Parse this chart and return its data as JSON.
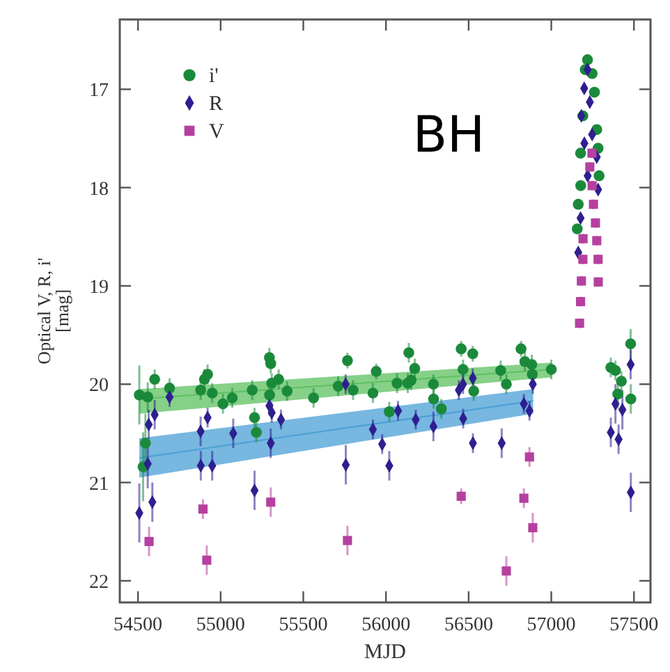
{
  "chart_data": {
    "type": "scatter",
    "xlabel": "MJD",
    "ylabel": "Optical V, R, i'\n[mag]",
    "annotations": [
      "BH"
    ],
    "xlim": [
      54390,
      57600
    ],
    "ylim": [
      22.22,
      16.29
    ],
    "xticks": [
      54500,
      55000,
      55500,
      56000,
      56500,
      57000,
      57500
    ],
    "yticks": [
      17,
      18,
      19,
      20,
      21,
      22
    ],
    "legend": "top left",
    "grid": false,
    "series": [
      {
        "type": "line",
        "color": "#5ec060",
        "x": [
          54508,
          57000
        ],
        "values": [
          20.15,
          19.85
        ],
        "lower": [
          20.05,
          19.78
        ],
        "upper": [
          20.3,
          19.93
        ]
      },
      {
        "type": "line",
        "color": "#4a9fd6",
        "x": [
          54508,
          56890
        ],
        "values": [
          20.75,
          20.17
        ],
        "lower": [
          20.55,
          20.05
        ],
        "upper": [
          20.95,
          20.3
        ]
      },
      {
        "name": "i'",
        "color": "#1a8a3a",
        "marker": "circle",
        "x": [
          54508,
          54559,
          54545,
          54531,
          54601,
          54691,
          54879,
          54902,
          54921,
          54949,
          55014,
          55070,
          55191,
          55205,
          55216,
          55295,
          55303,
          55309,
          55296,
          55351,
          55402,
          55562,
          55711,
          55767,
          55801,
          55921,
          55941,
          56020,
          56067,
          56138,
          56174,
          56132,
          56152,
          56287,
          56288,
          56335,
          56455,
          56466,
          56525,
          56531,
          56694,
          56728,
          56817,
          56840,
          56882,
          56885,
          57000,
          57219,
          57205,
          57247,
          57261,
          57191,
          57275,
          57177,
          57283,
          57178,
          57289,
          57163,
          57157,
          57360,
          57388,
          57424,
          57402,
          57480,
          57481
        ],
        "values": [
          20.11,
          20.13,
          20.6,
          20.84,
          19.95,
          20.04,
          20.06,
          19.95,
          19.9,
          20.09,
          20.2,
          20.14,
          20.06,
          20.34,
          20.49,
          19.73,
          19.79,
          19.99,
          20.11,
          19.95,
          20.07,
          20.14,
          20.02,
          19.76,
          20.06,
          20.09,
          19.87,
          20.28,
          19.99,
          19.68,
          19.84,
          19.99,
          19.96,
          20.0,
          20.15,
          20.25,
          19.64,
          19.85,
          19.69,
          20.07,
          19.86,
          20.0,
          19.64,
          19.77,
          19.8,
          19.9,
          19.85,
          16.7,
          16.8,
          16.84,
          17.03,
          17.27,
          17.41,
          17.65,
          17.6,
          17.98,
          17.88,
          18.17,
          18.42,
          19.83,
          19.86,
          19.97,
          20.1,
          19.59,
          20.15
        ],
        "errors": [
          0.3,
          0.15,
          0.3,
          0.35,
          0.1,
          0.1,
          0.1,
          0.1,
          0.1,
          0.1,
          0.1,
          0.1,
          0.1,
          0.1,
          0.1,
          0.1,
          0.1,
          0.1,
          0.1,
          0.1,
          0.1,
          0.1,
          0.1,
          0.08,
          0.1,
          0.1,
          0.08,
          0.1,
          0.1,
          0.1,
          0.1,
          0.1,
          0.1,
          0.1,
          0.1,
          0.1,
          0.08,
          0.1,
          0.08,
          0.1,
          0.1,
          0.1,
          0.08,
          0.1,
          0.1,
          0.1,
          0.1,
          0.05,
          0.05,
          0.05,
          0.05,
          0.05,
          0.05,
          0.05,
          0.05,
          0.05,
          0.05,
          0.05,
          0.05,
          0.1,
          0.1,
          0.1,
          0.15,
          0.15,
          0.15
        ]
      },
      {
        "name": "R",
        "color": "#2e1f8f",
        "marker": "diamond",
        "x": [
          54508,
          54559,
          54565,
          54587,
          54601,
          54691,
          54879,
          54921,
          54880,
          54949,
          55076,
          55205,
          55295,
          55309,
          55303,
          55365,
          55756,
          55757,
          55921,
          55977,
          56020,
          56073,
          56180,
          56287,
          56441,
          56466,
          56467,
          56525,
          56526,
          56700,
          56834,
          56868,
          56888,
          57219,
          57199,
          57233,
          57182,
          57247,
          57200,
          57275,
          57220,
          57283,
          57177,
          57163,
          57360,
          57388,
          57407,
          57430,
          57480,
          57481
        ],
        "values": [
          21.31,
          20.81,
          20.41,
          21.2,
          20.31,
          20.13,
          20.48,
          20.34,
          20.83,
          20.83,
          20.5,
          21.08,
          20.22,
          20.29,
          20.6,
          20.36,
          20.0,
          20.82,
          20.46,
          20.61,
          20.83,
          20.27,
          20.36,
          20.43,
          20.06,
          20.0,
          20.35,
          19.94,
          20.6,
          20.6,
          20.2,
          20.27,
          20.0,
          16.8,
          16.99,
          17.13,
          17.27,
          17.46,
          17.55,
          17.69,
          17.88,
          18.02,
          18.31,
          18.66,
          20.49,
          20.2,
          20.56,
          20.26,
          19.8,
          21.1
        ],
        "errors": [
          0.3,
          0.25,
          0.15,
          0.2,
          0.15,
          0.1,
          0.15,
          0.1,
          0.15,
          0.15,
          0.15,
          0.2,
          0.1,
          0.1,
          0.15,
          0.1,
          0.1,
          0.2,
          0.1,
          0.1,
          0.15,
          0.1,
          0.1,
          0.15,
          0.1,
          0.1,
          0.1,
          0.1,
          0.1,
          0.15,
          0.1,
          0.1,
          0.1,
          0.05,
          0.05,
          0.05,
          0.05,
          0.05,
          0.05,
          0.05,
          0.05,
          0.05,
          0.05,
          0.05,
          0.15,
          0.2,
          0.15,
          0.2,
          0.15,
          0.2
        ]
      },
      {
        "name": "V",
        "color": "#b5409f",
        "marker": "square",
        "x": [
          54567,
          54893,
          54916,
          55303,
          55767,
          56455,
          56728,
          56834,
          56868,
          56888,
          57171,
          57177,
          57182,
          57191,
          57192,
          57233,
          57247,
          57255,
          57267,
          57275,
          57283,
          57284,
          57246
        ],
        "values": [
          21.6,
          21.27,
          21.79,
          21.2,
          21.59,
          21.14,
          21.9,
          21.16,
          20.74,
          21.46,
          19.38,
          19.16,
          18.95,
          18.73,
          18.52,
          17.79,
          17.98,
          18.17,
          18.36,
          18.54,
          18.73,
          18.96,
          17.65
        ],
        "errors": [
          0.15,
          0.1,
          0.15,
          0.15,
          0.15,
          0.08,
          0.15,
          0.1,
          0.1,
          0.15,
          0.05,
          0.05,
          0.05,
          0.05,
          0.05,
          0.05,
          0.05,
          0.05,
          0.05,
          0.05,
          0.05,
          0.05,
          0.05
        ]
      }
    ]
  }
}
